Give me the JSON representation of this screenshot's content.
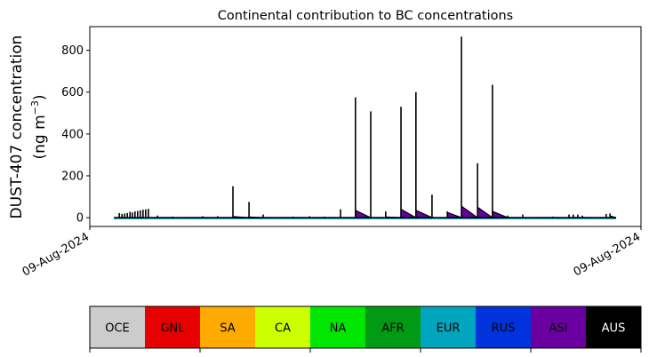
{
  "chart_data": {
    "type": "area",
    "title": "Continental contribution to BC concentrations",
    "ylabel_line1": "DUST-407 concentration",
    "ylabel_line2": "(ng m",
    "ylabel_sup": "−3",
    "ylabel_close": ")",
    "ylim": [
      -42,
      913
    ],
    "yticks": [
      0,
      200,
      400,
      600,
      800
    ],
    "xlim": [
      "00:00",
      "24:00"
    ],
    "xtick_labels": [
      "09-Aug-2024",
      "09-Aug-2024"
    ],
    "series_start": "01:03",
    "series_end": "22:55",
    "total_line_color": "#000000",
    "events": [
      {
        "time": "01:17",
        "total": 22,
        "ASI": 0
      },
      {
        "time": "01:24",
        "total": 18,
        "ASI": 0
      },
      {
        "time": "01:31",
        "total": 20,
        "ASI": 0
      },
      {
        "time": "01:38",
        "total": 22,
        "ASI": 0
      },
      {
        "time": "01:45",
        "total": 28,
        "ASI": 0
      },
      {
        "time": "01:51",
        "total": 25,
        "ASI": 0
      },
      {
        "time": "01:58",
        "total": 30,
        "ASI": 0
      },
      {
        "time": "02:05",
        "total": 32,
        "ASI": 0
      },
      {
        "time": "02:12",
        "total": 35,
        "ASI": 0
      },
      {
        "time": "02:19",
        "total": 38,
        "ASI": 0
      },
      {
        "time": "02:26",
        "total": 40,
        "ASI": 0
      },
      {
        "time": "02:33",
        "total": 42,
        "ASI": 0
      },
      {
        "time": "02:57",
        "total": 10,
        "ASI": 0
      },
      {
        "time": "03:36",
        "total": 5,
        "ASI": 0
      },
      {
        "time": "04:55",
        "total": 7,
        "ASI": 0
      },
      {
        "time": "05:34",
        "total": 7,
        "ASI": 0
      },
      {
        "time": "06:14",
        "total": 150,
        "ASI": 5
      },
      {
        "time": "06:56",
        "total": 75,
        "ASI": 3
      },
      {
        "time": "07:33",
        "total": 15,
        "ASI": 0
      },
      {
        "time": "08:52",
        "total": 5,
        "ASI": 0
      },
      {
        "time": "09:34",
        "total": 7,
        "ASI": 0
      },
      {
        "time": "10:13",
        "total": 5,
        "ASI": 0
      },
      {
        "time": "10:55",
        "total": 40,
        "ASI": 0
      },
      {
        "time": "11:34",
        "total": 575,
        "ASI": 35
      },
      {
        "time": "12:14",
        "total": 508,
        "ASI": 0
      },
      {
        "time": "12:53",
        "total": 30,
        "ASI": 3
      },
      {
        "time": "13:33",
        "total": 530,
        "ASI": 40
      },
      {
        "time": "14:12",
        "total": 600,
        "ASI": 35
      },
      {
        "time": "14:54",
        "total": 110,
        "ASI": 0
      },
      {
        "time": "15:34",
        "total": 30,
        "ASI": 25
      },
      {
        "time": "16:11",
        "total": 865,
        "ASI": 55
      },
      {
        "time": "16:53",
        "total": 260,
        "ASI": 50
      },
      {
        "time": "17:32",
        "total": 635,
        "ASI": 30
      },
      {
        "time": "18:12",
        "total": 10,
        "ASI": 0
      },
      {
        "time": "18:51",
        "total": 15,
        "ASI": 0
      },
      {
        "time": "20:10",
        "total": 5,
        "ASI": 0
      },
      {
        "time": "20:52",
        "total": 15,
        "ASI": 0
      },
      {
        "time": "21:03",
        "total": 15,
        "ASI": 0
      },
      {
        "time": "21:15",
        "total": 15,
        "ASI": 0
      },
      {
        "time": "21:27",
        "total": 10,
        "ASI": 0
      },
      {
        "time": "22:29",
        "total": 18,
        "ASI": 0
      },
      {
        "time": "22:39",
        "total": 20,
        "ASI": 8
      }
    ],
    "legend": {
      "placement": "bottom colorbar",
      "entries": [
        {
          "label": "OCE",
          "color": "#cccccc",
          "text_color": "#000000"
        },
        {
          "label": "GNL",
          "color": "#e60000",
          "text_color": "#000000"
        },
        {
          "label": "SA",
          "color": "#ffaa00",
          "text_color": "#000000"
        },
        {
          "label": "CA",
          "color": "#ccff00",
          "text_color": "#000000"
        },
        {
          "label": "NA",
          "color": "#00e600",
          "text_color": "#000000"
        },
        {
          "label": "AFR",
          "color": "#009a14",
          "text_color": "#000000"
        },
        {
          "label": "EUR",
          "color": "#00a5be",
          "text_color": "#000000"
        },
        {
          "label": "RUS",
          "color": "#0033dc",
          "text_color": "#000000"
        },
        {
          "label": "ASI",
          "color": "#6a00a0",
          "text_color": "#000000"
        },
        {
          "label": "AUS",
          "color": "#000000",
          "text_color": "#ffffff"
        }
      ]
    },
    "grid": false
  }
}
